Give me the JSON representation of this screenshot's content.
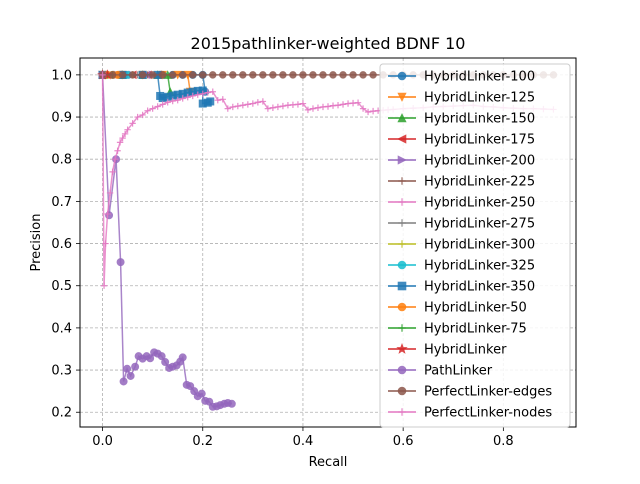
{
  "chart_data": {
    "type": "line",
    "title": "2015pathlinker-weighted BDNF 10",
    "xlabel": "Recall",
    "ylabel": "Precision",
    "xlim": [
      -0.045,
      0.945
    ],
    "ylim": [
      0.165,
      1.04
    ],
    "xticks": [
      "0.0",
      "0.2",
      "0.4",
      "0.6",
      "0.8"
    ],
    "xtick_values": [
      0.0,
      0.2,
      0.4,
      0.6,
      0.8
    ],
    "yticks": [
      "0.2",
      "0.3",
      "0.4",
      "0.5",
      "0.6",
      "0.7",
      "0.8",
      "0.9",
      "1.0"
    ],
    "ytick_values": [
      0.2,
      0.3,
      0.4,
      0.5,
      0.6,
      0.7,
      0.8,
      0.9,
      1.0
    ],
    "grid": true,
    "legend_position": "right",
    "series": [
      {
        "name": "HybridLinker-100",
        "color": "#1f77b4",
        "marker": "circle",
        "x": [
          0.0,
          0.04,
          0.08,
          0.12,
          0.14,
          0.16,
          0.18,
          0.2,
          0.205
        ],
        "y": [
          1.0,
          1.0,
          1.0,
          1.0,
          1.0,
          1.0,
          1.0,
          1.0,
          0.96
        ]
      },
      {
        "name": "HybridLinker-125",
        "color": "#ff7f0e",
        "marker": "triangle-down",
        "x": [
          0.0,
          0.04,
          0.08,
          0.12,
          0.15,
          0.17,
          0.175
        ],
        "y": [
          1.0,
          1.0,
          1.0,
          1.0,
          1.0,
          1.0,
          0.96
        ]
      },
      {
        "name": "HybridLinker-150",
        "color": "#2ca02c",
        "marker": "triangle-up",
        "x": [
          0.0,
          0.04,
          0.08,
          0.11,
          0.13,
          0.135
        ],
        "y": [
          1.0,
          1.0,
          1.0,
          1.0,
          1.0,
          0.96
        ]
      },
      {
        "name": "HybridLinker-175",
        "color": "#d62728",
        "marker": "triangle-left",
        "x": [
          0.0,
          0.03,
          0.06,
          0.09,
          0.11
        ],
        "y": [
          1.0,
          1.0,
          1.0,
          1.0,
          1.0
        ]
      },
      {
        "name": "HybridLinker-200",
        "color": "#9467bd",
        "marker": "triangle-right",
        "x": [
          0.0,
          0.03,
          0.06,
          0.09,
          0.1
        ],
        "y": [
          1.0,
          1.0,
          1.0,
          1.0,
          1.0
        ]
      },
      {
        "name": "HybridLinker-225",
        "color": "#8c564b",
        "marker": "plus",
        "x": [
          0.0,
          0.03,
          0.06,
          0.09
        ],
        "y": [
          1.0,
          1.0,
          1.0,
          1.0
        ]
      },
      {
        "name": "HybridLinker-250",
        "color": "#e377c2",
        "marker": "plus",
        "x": [
          0.0,
          0.03,
          0.06,
          0.08
        ],
        "y": [
          1.0,
          1.0,
          1.0,
          1.0
        ]
      },
      {
        "name": "HybridLinker-275",
        "color": "#7f7f7f",
        "marker": "plus",
        "x": [
          0.0,
          0.03,
          0.05,
          0.07
        ],
        "y": [
          1.0,
          1.0,
          1.0,
          1.0
        ]
      },
      {
        "name": "HybridLinker-300",
        "color": "#bcbd22",
        "marker": "plus",
        "x": [
          0.0,
          0.02,
          0.04,
          0.06
        ],
        "y": [
          1.0,
          1.0,
          1.0,
          1.0
        ]
      },
      {
        "name": "HybridLinker-325",
        "color": "#17becf",
        "marker": "circle",
        "x": [
          0.0,
          0.02,
          0.04,
          0.05
        ],
        "y": [
          1.0,
          1.0,
          1.0,
          1.0
        ]
      },
      {
        "name": "HybridLinker-350",
        "color": "#1f77b4",
        "marker": "square",
        "x": [
          0.0,
          0.04,
          0.08,
          0.11,
          0.115,
          0.12,
          0.13,
          0.14,
          0.15,
          0.16,
          0.17,
          0.18,
          0.19,
          0.2,
          0.2,
          0.21,
          0.215
        ],
        "y": [
          1.0,
          1.0,
          1.0,
          1.0,
          0.95,
          0.945,
          0.948,
          0.951,
          0.953,
          0.955,
          0.958,
          0.96,
          0.962,
          0.963,
          0.932,
          0.934,
          0.937
        ]
      },
      {
        "name": "HybridLinker-50",
        "color": "#ff7f0e",
        "marker": "circle",
        "x": [
          0.0,
          0.01,
          0.02,
          0.03
        ],
        "y": [
          1.0,
          1.0,
          1.0,
          1.0
        ]
      },
      {
        "name": "HybridLinker-75",
        "color": "#2ca02c",
        "marker": "plus",
        "x": [
          0.0,
          0.01,
          0.02
        ],
        "y": [
          1.0,
          1.0,
          1.0
        ]
      },
      {
        "name": "HybridLinker",
        "color": "#d62728",
        "marker": "star",
        "x": [
          0.0,
          0.01
        ],
        "y": [
          1.0,
          1.0
        ]
      },
      {
        "name": "PathLinker",
        "color": "#9467bd",
        "marker": "circle",
        "x": [
          0.0,
          0.013,
          0.027,
          0.036,
          0.042,
          0.049,
          0.056,
          0.065,
          0.072,
          0.08,
          0.088,
          0.095,
          0.103,
          0.11,
          0.118,
          0.125,
          0.133,
          0.14,
          0.148,
          0.155,
          0.16,
          0.168,
          0.175,
          0.183,
          0.19,
          0.198,
          0.205,
          0.213,
          0.22,
          0.228,
          0.235,
          0.243,
          0.25,
          0.258
        ],
        "y": [
          1.0,
          0.667,
          0.8,
          0.556,
          0.273,
          0.303,
          0.286,
          0.308,
          0.333,
          0.327,
          0.333,
          0.328,
          0.342,
          0.339,
          0.333,
          0.319,
          0.305,
          0.308,
          0.311,
          0.32,
          0.33,
          0.265,
          0.262,
          0.25,
          0.238,
          0.244,
          0.227,
          0.225,
          0.213,
          0.214,
          0.217,
          0.22,
          0.222,
          0.22
        ]
      },
      {
        "name": "PerfectLinker-edges",
        "color": "#8c564b",
        "marker": "circle",
        "x": [
          0.0,
          0.02,
          0.04,
          0.06,
          0.08,
          0.1,
          0.12,
          0.14,
          0.16,
          0.18,
          0.2,
          0.22,
          0.24,
          0.26,
          0.28,
          0.3,
          0.32,
          0.34,
          0.36,
          0.38,
          0.4,
          0.42,
          0.44,
          0.46,
          0.48,
          0.5,
          0.52,
          0.54,
          0.56,
          0.58,
          0.6,
          0.62,
          0.64,
          0.66,
          0.68,
          0.7,
          0.72,
          0.74,
          0.76,
          0.78,
          0.8,
          0.82,
          0.84,
          0.86,
          0.88,
          0.9
        ],
        "y": [
          1.0,
          1.0,
          1.0,
          1.0,
          1.0,
          1.0,
          1.0,
          1.0,
          1.0,
          1.0,
          1.0,
          1.0,
          1.0,
          1.0,
          1.0,
          1.0,
          1.0,
          1.0,
          1.0,
          1.0,
          1.0,
          1.0,
          1.0,
          1.0,
          1.0,
          1.0,
          1.0,
          1.0,
          1.0,
          1.0,
          1.0,
          1.0,
          1.0,
          1.0,
          1.0,
          1.0,
          1.0,
          1.0,
          1.0,
          1.0,
          1.0,
          1.0,
          1.0,
          1.0,
          1.0,
          1.0
        ]
      },
      {
        "name": "PerfectLinker-nodes",
        "color": "#e377c2",
        "marker": "plus",
        "x": [
          0.0,
          0.003,
          0.006,
          0.01,
          0.015,
          0.02,
          0.025,
          0.03,
          0.035,
          0.04,
          0.045,
          0.05,
          0.06,
          0.07,
          0.08,
          0.09,
          0.1,
          0.11,
          0.12,
          0.13,
          0.14,
          0.15,
          0.16,
          0.17,
          0.18,
          0.19,
          0.2,
          0.21,
          0.22,
          0.23,
          0.24,
          0.25,
          0.26,
          0.27,
          0.28,
          0.29,
          0.3,
          0.31,
          0.32,
          0.33,
          0.34,
          0.35,
          0.36,
          0.37,
          0.38,
          0.39,
          0.4,
          0.41,
          0.42,
          0.43,
          0.44,
          0.45,
          0.46,
          0.47,
          0.48,
          0.49,
          0.5,
          0.51,
          0.52,
          0.53,
          0.54,
          0.55,
          0.56,
          0.57,
          0.58,
          0.6,
          0.62,
          0.64,
          0.66,
          0.68,
          0.7,
          0.72,
          0.74,
          0.76,
          0.78,
          0.8,
          0.82,
          0.84,
          0.86,
          0.88,
          0.9
        ],
        "y": [
          1.0,
          0.5,
          0.6,
          0.67,
          0.72,
          0.77,
          0.8,
          0.82,
          0.84,
          0.85,
          0.86,
          0.87,
          0.885,
          0.9,
          0.905,
          0.915,
          0.92,
          0.925,
          0.93,
          0.935,
          0.938,
          0.94,
          0.944,
          0.947,
          0.95,
          0.953,
          0.955,
          0.958,
          0.96,
          0.94,
          0.942,
          0.92,
          0.924,
          0.926,
          0.928,
          0.93,
          0.932,
          0.935,
          0.937,
          0.92,
          0.922,
          0.924,
          0.926,
          0.928,
          0.929,
          0.93,
          0.932,
          0.917,
          0.92,
          0.922,
          0.924,
          0.925,
          0.927,
          0.928,
          0.93,
          0.932,
          0.933,
          0.934,
          0.92,
          0.912,
          0.914,
          0.915,
          0.916,
          0.917,
          0.918,
          0.92,
          0.921,
          0.922,
          0.924,
          0.925,
          0.926,
          0.927,
          0.928,
          0.925,
          0.924,
          0.922,
          0.921,
          0.92,
          0.92,
          0.919,
          0.918
        ]
      }
    ]
  }
}
